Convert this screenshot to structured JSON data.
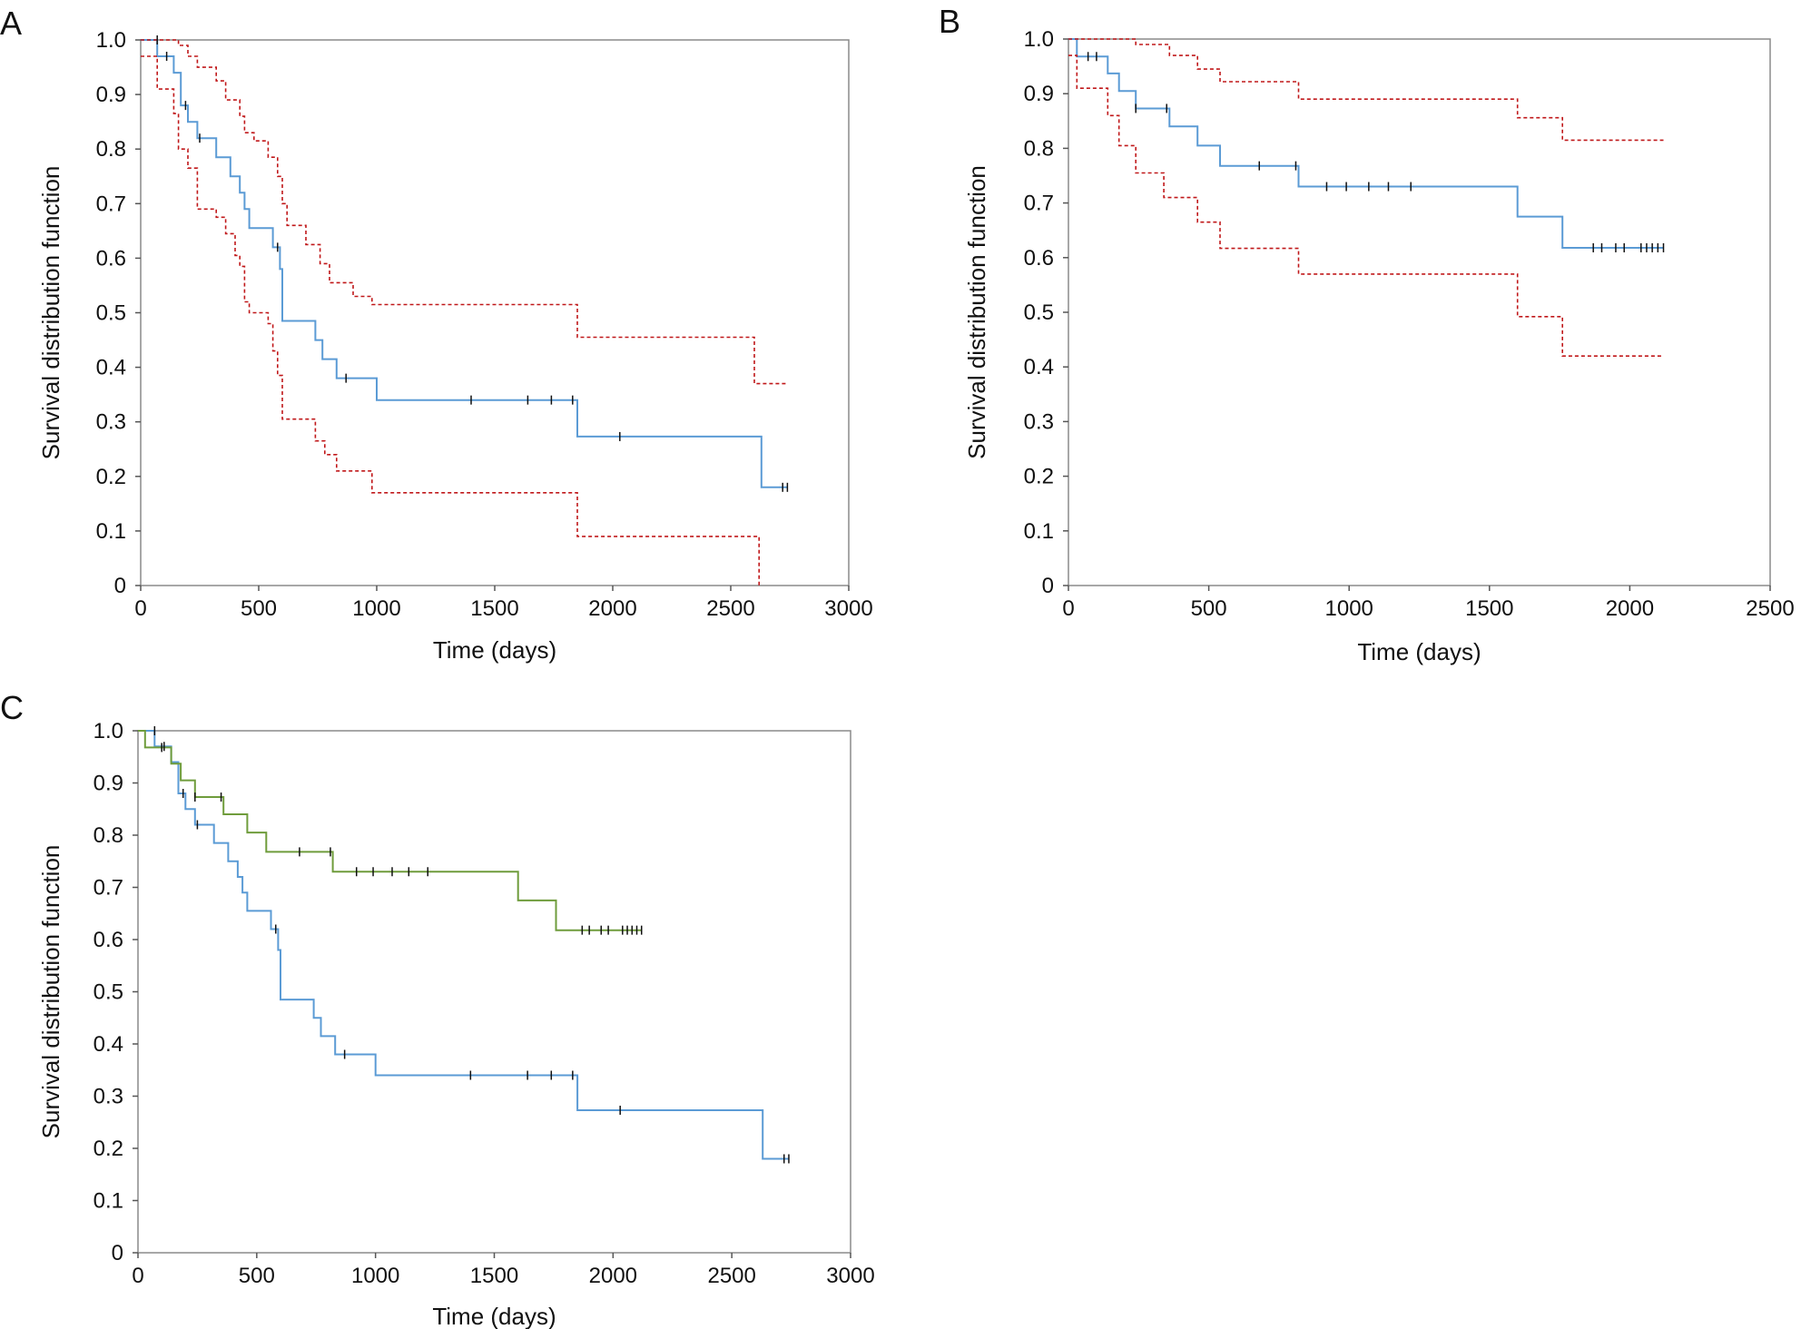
{
  "colors": {
    "estimate": "#5b9bd5",
    "ci": "#c0181a",
    "group2": "#6f9c3c",
    "censor": "#111111",
    "frame": "#8a8a8a"
  },
  "chart_data": [
    {
      "panel": "A",
      "type": "line",
      "xlabel": "Time (days)",
      "ylabel": "Survival distribution function",
      "xlim": [
        0,
        3000
      ],
      "ylim": [
        0,
        1.0
      ],
      "xticks": [
        "0",
        "500",
        "1000",
        "1500",
        "2000",
        "2500",
        "3000"
      ],
      "yticks": [
        "0",
        "0.1",
        "0.2",
        "0.3",
        "0.4",
        "0.5",
        "0.6",
        "0.7",
        "0.8",
        "0.9",
        "1.0"
      ],
      "grid": false,
      "legend": "none",
      "series": [
        {
          "style": "survival",
          "color": "#5b9bd5",
          "x": [
            0,
            70,
            140,
            170,
            200,
            240,
            320,
            380,
            420,
            440,
            460,
            560,
            590,
            600,
            700,
            740,
            770,
            830,
            950,
            1000,
            1830,
            1850,
            2600,
            2630,
            2740
          ],
          "y": [
            1.0,
            0.97,
            0.94,
            0.88,
            0.85,
            0.82,
            0.785,
            0.75,
            0.72,
            0.69,
            0.655,
            0.62,
            0.58,
            0.485,
            0.485,
            0.45,
            0.415,
            0.38,
            0.38,
            0.34,
            0.34,
            0.273,
            0.273,
            0.18,
            0.18
          ]
        },
        {
          "style": "ci-upper",
          "color": "#c0181a",
          "x": [
            0,
            160,
            200,
            240,
            320,
            360,
            420,
            440,
            480,
            540,
            580,
            600,
            620,
            700,
            760,
            800,
            830,
            900,
            980,
            1850,
            2600,
            2620,
            2740
          ],
          "y": [
            1.0,
            0.99,
            0.97,
            0.95,
            0.925,
            0.89,
            0.86,
            0.83,
            0.815,
            0.785,
            0.75,
            0.7,
            0.66,
            0.625,
            0.59,
            0.555,
            0.555,
            0.53,
            0.515,
            0.455,
            0.37,
            0.37,
            0.37
          ]
        },
        {
          "style": "ci-lower",
          "color": "#c0181a",
          "x": [
            0,
            70,
            140,
            160,
            200,
            240,
            320,
            360,
            400,
            420,
            440,
            460,
            540,
            560,
            580,
            600,
            700,
            740,
            780,
            830,
            980,
            1850,
            2600,
            2620
          ],
          "y": [
            0.97,
            0.91,
            0.865,
            0.8,
            0.765,
            0.69,
            0.675,
            0.645,
            0.605,
            0.585,
            0.52,
            0.5,
            0.48,
            0.43,
            0.385,
            0.305,
            0.305,
            0.265,
            0.24,
            0.21,
            0.17,
            0.09,
            0.09,
            0.0
          ]
        }
      ],
      "censored": {
        "x": [
          70,
          110,
          190,
          250,
          580,
          870,
          1400,
          1640,
          1740,
          1830,
          2030,
          2720,
          2740
        ],
        "y": [
          1.0,
          0.97,
          0.88,
          0.82,
          0.62,
          0.38,
          0.34,
          0.34,
          0.34,
          0.34,
          0.273,
          0.18,
          0.18
        ]
      }
    },
    {
      "panel": "B",
      "type": "line",
      "xlabel": "Time (days)",
      "ylabel": "Survival distribution function",
      "xlim": [
        0,
        2500
      ],
      "ylim": [
        0,
        1.0
      ],
      "xticks": [
        "0",
        "500",
        "1000",
        "1500",
        "2000",
        "2500"
      ],
      "yticks": [
        "0",
        "0.1",
        "0.2",
        "0.3",
        "0.4",
        "0.5",
        "0.6",
        "0.7",
        "0.8",
        "0.9",
        "1.0"
      ],
      "grid": false,
      "legend": "none",
      "series": [
        {
          "style": "survival",
          "color": "#5b9bd5",
          "x": [
            0,
            30,
            140,
            180,
            240,
            340,
            360,
            460,
            540,
            820,
            1600,
            1760,
            2120
          ],
          "y": [
            1.0,
            0.968,
            0.937,
            0.905,
            0.873,
            0.873,
            0.84,
            0.805,
            0.768,
            0.73,
            0.675,
            0.618,
            0.618
          ]
        },
        {
          "style": "ci-upper",
          "color": "#c0181a",
          "x": [
            0,
            240,
            360,
            460,
            540,
            820,
            1600,
            1760,
            2120
          ],
          "y": [
            1.0,
            0.99,
            0.97,
            0.945,
            0.922,
            0.89,
            0.856,
            0.815,
            0.815
          ]
        },
        {
          "style": "ci-lower",
          "color": "#c0181a",
          "x": [
            0,
            30,
            140,
            180,
            240,
            340,
            460,
            540,
            820,
            1600,
            1760,
            2120
          ],
          "y": [
            0.97,
            0.91,
            0.86,
            0.805,
            0.755,
            0.71,
            0.665,
            0.617,
            0.57,
            0.492,
            0.42,
            0.42
          ]
        }
      ],
      "censored": {
        "x": [
          70,
          100,
          240,
          350,
          680,
          810,
          920,
          990,
          1070,
          1140,
          1220,
          1870,
          1900,
          1950,
          1980,
          2040,
          2060,
          2080,
          2100,
          2120
        ],
        "y": [
          0.968,
          0.968,
          0.873,
          0.873,
          0.768,
          0.768,
          0.73,
          0.73,
          0.73,
          0.73,
          0.73,
          0.618,
          0.618,
          0.618,
          0.618,
          0.618,
          0.618,
          0.618,
          0.618,
          0.618
        ]
      }
    },
    {
      "panel": "C",
      "type": "line",
      "xlabel": "Time (days)",
      "ylabel": "Survival distribution function",
      "xlim": [
        0,
        3000
      ],
      "ylim": [
        0,
        1.0
      ],
      "xticks": [
        "0",
        "500",
        "1000",
        "1500",
        "2000",
        "2500",
        "3000"
      ],
      "yticks": [
        "0",
        "0.1",
        "0.2",
        "0.3",
        "0.4",
        "0.5",
        "0.6",
        "0.7",
        "0.8",
        "0.9",
        "1.0"
      ],
      "grid": false,
      "legend": "none",
      "series": [
        {
          "style": "survival",
          "color": "#5b9bd5",
          "x": [
            0,
            70,
            140,
            170,
            200,
            240,
            320,
            380,
            420,
            440,
            460,
            560,
            590,
            600,
            700,
            740,
            770,
            830,
            950,
            1000,
            1830,
            1850,
            2600,
            2630,
            2740
          ],
          "y": [
            1.0,
            0.97,
            0.94,
            0.88,
            0.85,
            0.82,
            0.785,
            0.75,
            0.72,
            0.69,
            0.655,
            0.62,
            0.58,
            0.485,
            0.485,
            0.45,
            0.415,
            0.38,
            0.38,
            0.34,
            0.34,
            0.273,
            0.273,
            0.18,
            0.18
          ]
        },
        {
          "style": "survival",
          "color": "#6f9c3c",
          "x": [
            0,
            30,
            140,
            180,
            240,
            340,
            360,
            460,
            540,
            820,
            1600,
            1760,
            2120
          ],
          "y": [
            1.0,
            0.968,
            0.937,
            0.905,
            0.873,
            0.873,
            0.84,
            0.805,
            0.768,
            0.73,
            0.675,
            0.618,
            0.618
          ]
        }
      ],
      "censored": {
        "x": [
          70,
          110,
          190,
          250,
          580,
          870,
          1400,
          1640,
          1740,
          1830,
          2030,
          2720,
          2740,
          100,
          240,
          350,
          680,
          810,
          920,
          990,
          1070,
          1140,
          1220,
          1870,
          1900,
          1950,
          1980,
          2040,
          2060,
          2080,
          2100,
          2120
        ],
        "y": [
          1.0,
          0.97,
          0.88,
          0.82,
          0.62,
          0.38,
          0.34,
          0.34,
          0.34,
          0.34,
          0.273,
          0.18,
          0.18,
          0.968,
          0.873,
          0.873,
          0.768,
          0.768,
          0.73,
          0.73,
          0.73,
          0.73,
          0.73,
          0.618,
          0.618,
          0.618,
          0.618,
          0.618,
          0.618,
          0.618,
          0.618,
          0.618
        ]
      }
    }
  ]
}
